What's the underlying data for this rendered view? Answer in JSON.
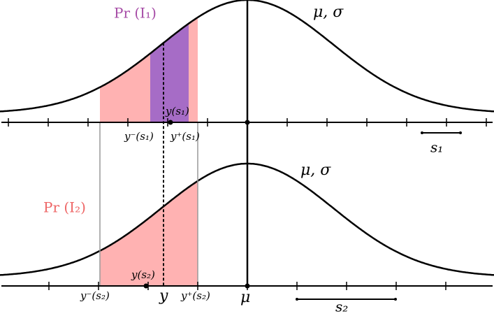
{
  "top": {
    "curve_label": "μ, σ",
    "prob_label": "Pr (I₁)",
    "point_label": "y(s₁)",
    "lower_label": "y⁻(s₁)",
    "upper_label": "y⁺(s₁)",
    "scale_label": "s₁"
  },
  "bottom": {
    "curve_label": "μ, σ",
    "prob_label": "Pr (I₂)",
    "point_label": "y(s₂)",
    "lower_label": "y⁻(s₂)",
    "upper_label": "y⁺(s₂)",
    "y_label": "y",
    "mean_label": "μ",
    "scale_label": "s₂"
  }
}
